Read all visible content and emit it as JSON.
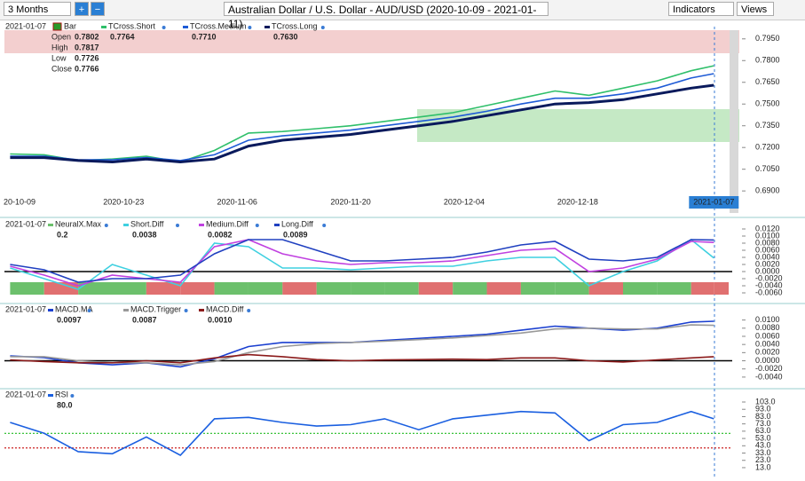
{
  "toolbar": {
    "period": "3 Months",
    "zoom_in": "+",
    "zoom_out": "−",
    "title": "Australian Dollar / U.S. Dollar - AUD/USD (2020-10-09 - 2021-01-11)",
    "indicators": "Indicators",
    "views": "Views"
  },
  "chart_data": [
    {
      "type": "line",
      "date": "2021-01-07",
      "bar_label": "Bar",
      "ohlc": [
        {
          "label": "Open",
          "value": "0.7802"
        },
        {
          "label": "High",
          "value": "0.7817"
        },
        {
          "label": "Low",
          "value": "0.7726"
        },
        {
          "label": "Close",
          "value": "0.7766"
        }
      ],
      "x": [
        0,
        3,
        6,
        9,
        12,
        15,
        18,
        21,
        24,
        27,
        30,
        33,
        36,
        39,
        42,
        45,
        48,
        51,
        54,
        57,
        60,
        62
      ],
      "xlim": [
        -0.5,
        64.4
      ],
      "xticks": [
        {
          "value": 0,
          "label": "20-10-09"
        },
        {
          "value": 10,
          "label": "2020-10-23"
        },
        {
          "value": 20,
          "label": "2020-11-06"
        },
        {
          "value": 30,
          "label": "2020-11-20"
        },
        {
          "value": 40,
          "label": "2020-12-04"
        },
        {
          "value": 50,
          "label": "2020-12-18"
        },
        {
          "value": 62,
          "label": "2021-01-07",
          "highlight": true
        }
      ],
      "ylim": [
        0.676,
        0.801
      ],
      "yticks": [
        {
          "value": 0.795,
          "label": "0.7950"
        },
        {
          "value": 0.78,
          "label": "0.7800"
        },
        {
          "value": 0.765,
          "label": "0.7650"
        },
        {
          "value": 0.75,
          "label": "0.7500"
        },
        {
          "value": 0.735,
          "label": "0.7350"
        },
        {
          "value": 0.72,
          "label": "0.7200"
        },
        {
          "value": 0.705,
          "label": "0.7050"
        },
        {
          "value": 0.69,
          "label": "0.6900"
        }
      ],
      "series": [
        {
          "name": "TCross.Short",
          "legend_value": "0.7764",
          "color": "#2fbf6a",
          "values": [
            0.7155,
            0.715,
            0.711,
            0.712,
            0.714,
            0.71,
            0.718,
            0.73,
            0.731,
            0.733,
            0.735,
            0.738,
            0.741,
            0.744,
            0.749,
            0.754,
            0.759,
            0.756,
            0.761,
            0.766,
            0.773,
            0.7764
          ]
        },
        {
          "name": "TCross.Medium",
          "legend_value": "0.7710",
          "color": "#1e5bd6",
          "values": [
            0.714,
            0.714,
            0.7115,
            0.7115,
            0.713,
            0.711,
            0.715,
            0.725,
            0.728,
            0.73,
            0.732,
            0.735,
            0.738,
            0.741,
            0.745,
            0.75,
            0.754,
            0.754,
            0.757,
            0.761,
            0.768,
            0.771
          ]
        },
        {
          "name": "TCross.Long",
          "legend_value": "0.7630",
          "color": "#0a1a5c",
          "values": [
            0.713,
            0.713,
            0.711,
            0.71,
            0.712,
            0.71,
            0.712,
            0.721,
            0.725,
            0.727,
            0.729,
            0.732,
            0.735,
            0.738,
            0.742,
            0.746,
            0.75,
            0.751,
            0.753,
            0.757,
            0.761,
            0.763
          ]
        }
      ]
    },
    {
      "type": "line",
      "date": "2021-01-07",
      "zero_line": true,
      "x": [
        0,
        3,
        6,
        9,
        12,
        15,
        18,
        21,
        24,
        27,
        30,
        33,
        36,
        39,
        42,
        45,
        48,
        51,
        54,
        57,
        60,
        62
      ],
      "xlim": [
        -0.5,
        64.4
      ],
      "ylim": [
        -0.008,
        0.0145
      ],
      "yticks": [
        {
          "value": 0.012,
          "label": "0.0120"
        },
        {
          "value": 0.01,
          "label": "0.0100"
        },
        {
          "value": 0.008,
          "label": "0.0080"
        },
        {
          "value": 0.006,
          "label": "0.0060"
        },
        {
          "value": 0.004,
          "label": "0.0040"
        },
        {
          "value": 0.002,
          "label": "0.0020"
        },
        {
          "value": 0,
          "label": "0.0000"
        },
        {
          "value": -0.002,
          "label": "-0.0020"
        },
        {
          "value": -0.004,
          "label": "-0.0040"
        },
        {
          "value": -0.006,
          "label": "-0.0060"
        }
      ],
      "series": [
        {
          "name": "NeuralX.Max",
          "legend_value": "0.2",
          "type": "strip",
          "color": "#6cc06c",
          "negative_color": "#e07070",
          "values": [
            1,
            -1,
            1,
            1,
            -1,
            -1,
            1,
            1,
            -1,
            1,
            1,
            1,
            -1,
            1,
            -1,
            1,
            1,
            -1,
            1,
            1,
            -1,
            -1
          ]
        },
        {
          "name": "Short.Diff",
          "legend_value": "0.0038",
          "color": "#3fd0e0",
          "values": [
            0.001,
            -0.002,
            -0.005,
            0.002,
            -0.001,
            -0.004,
            0.008,
            0.007,
            0.001,
            0.001,
            0.0005,
            0.001,
            0.0015,
            0.0015,
            0.003,
            0.004,
            0.004,
            -0.004,
            0.0,
            0.003,
            0.009,
            0.0038
          ]
        },
        {
          "name": "Medium.Diff",
          "legend_value": "0.0082",
          "color": "#c040e0",
          "values": [
            0.0015,
            -0.001,
            -0.004,
            -0.001,
            -0.002,
            -0.003,
            0.007,
            0.009,
            0.005,
            0.003,
            0.002,
            0.0025,
            0.0025,
            0.003,
            0.0045,
            0.006,
            0.0065,
            0.0,
            0.001,
            0.0035,
            0.0085,
            0.0082
          ]
        },
        {
          "name": "Long.Diff",
          "legend_value": "0.0089",
          "color": "#2040c0",
          "values": [
            0.002,
            0.0005,
            -0.003,
            -0.002,
            -0.002,
            -0.001,
            0.005,
            0.009,
            0.009,
            0.006,
            0.003,
            0.003,
            0.0035,
            0.004,
            0.0055,
            0.0075,
            0.0085,
            0.0035,
            0.003,
            0.004,
            0.009,
            0.0089
          ]
        }
      ]
    },
    {
      "type": "line",
      "date": "2021-01-07",
      "zero_line": true,
      "x": [
        0,
        3,
        6,
        9,
        12,
        15,
        18,
        21,
        24,
        27,
        30,
        33,
        36,
        39,
        42,
        45,
        48,
        51,
        54,
        57,
        60,
        62
      ],
      "xlim": [
        -0.5,
        64.4
      ],
      "ylim": [
        -0.0062,
        0.0134
      ],
      "yticks": [
        {
          "value": 0.01,
          "label": "0.0100"
        },
        {
          "value": 0.008,
          "label": "0.0080"
        },
        {
          "value": 0.006,
          "label": "0.0060"
        },
        {
          "value": 0.004,
          "label": "0.0040"
        },
        {
          "value": 0.002,
          "label": "0.0020"
        },
        {
          "value": 0,
          "label": "0.0000"
        },
        {
          "value": -0.002,
          "label": "-0.0020"
        },
        {
          "value": -0.004,
          "label": "-0.0040"
        }
      ],
      "series": [
        {
          "name": "MACD.MA",
          "legend_value": "0.0097",
          "color": "#1a3fd0",
          "values": [
            0.0012,
            0.0008,
            -0.0005,
            -0.001,
            -0.0005,
            -0.0015,
            0.0005,
            0.0035,
            0.0045,
            0.0045,
            0.0045,
            0.005,
            0.0055,
            0.006,
            0.0065,
            0.0075,
            0.0085,
            0.008,
            0.0075,
            0.008,
            0.0095,
            0.0097
          ]
        },
        {
          "name": "MACD.Trigger",
          "legend_value": "0.0087",
          "color": "#999999",
          "values": [
            0.001,
            0.001,
            0.0,
            -0.0005,
            -0.0005,
            -0.001,
            -0.0002,
            0.002,
            0.0035,
            0.0042,
            0.0045,
            0.0048,
            0.0052,
            0.0056,
            0.0062,
            0.0068,
            0.0078,
            0.008,
            0.0078,
            0.0078,
            0.0088,
            0.0087
          ]
        },
        {
          "name": "MACD.Diff",
          "legend_value": "0.0010",
          "color": "#8b1a1a",
          "values": [
            0.0002,
            -0.0002,
            -0.0005,
            -0.0005,
            0.0,
            -0.0005,
            0.0007,
            0.0015,
            0.001,
            0.0003,
            0.0,
            0.0002,
            0.0003,
            0.0004,
            0.0003,
            0.0007,
            0.0007,
            0.0,
            -0.0003,
            0.0002,
            0.0007,
            0.001
          ]
        }
      ]
    },
    {
      "type": "line",
      "date": "2021-01-07",
      "x": [
        0,
        3,
        6,
        9,
        12,
        15,
        18,
        21,
        24,
        27,
        30,
        33,
        36,
        39,
        42,
        45,
        48,
        51,
        54,
        57,
        60,
        62
      ],
      "xlim": [
        -0.5,
        64.4
      ],
      "ylim": [
        3.2,
        117.6
      ],
      "yticks": [
        {
          "value": 103,
          "label": "103.0"
        },
        {
          "value": 93,
          "label": "93.0"
        },
        {
          "value": 83,
          "label": "83.0"
        },
        {
          "value": 73,
          "label": "73.0"
        },
        {
          "value": 63,
          "label": "63.0"
        },
        {
          "value": 53,
          "label": "53.0"
        },
        {
          "value": 43,
          "label": "43.0"
        },
        {
          "value": 33,
          "label": "33.0"
        },
        {
          "value": 23,
          "label": "23.0"
        },
        {
          "value": 13,
          "label": "13.0"
        }
      ],
      "levels": [
        {
          "value": 60,
          "color": "#22bb22"
        },
        {
          "value": 40,
          "color": "#cc2222"
        }
      ],
      "series": [
        {
          "name": "RSI",
          "legend_value": "80.0",
          "color": "#1a5fe0",
          "values": [
            75,
            60,
            35,
            32,
            55,
            30,
            80,
            82,
            75,
            70,
            72,
            80,
            65,
            80,
            85,
            90,
            88,
            50,
            72,
            75,
            90,
            80
          ]
        }
      ]
    }
  ]
}
